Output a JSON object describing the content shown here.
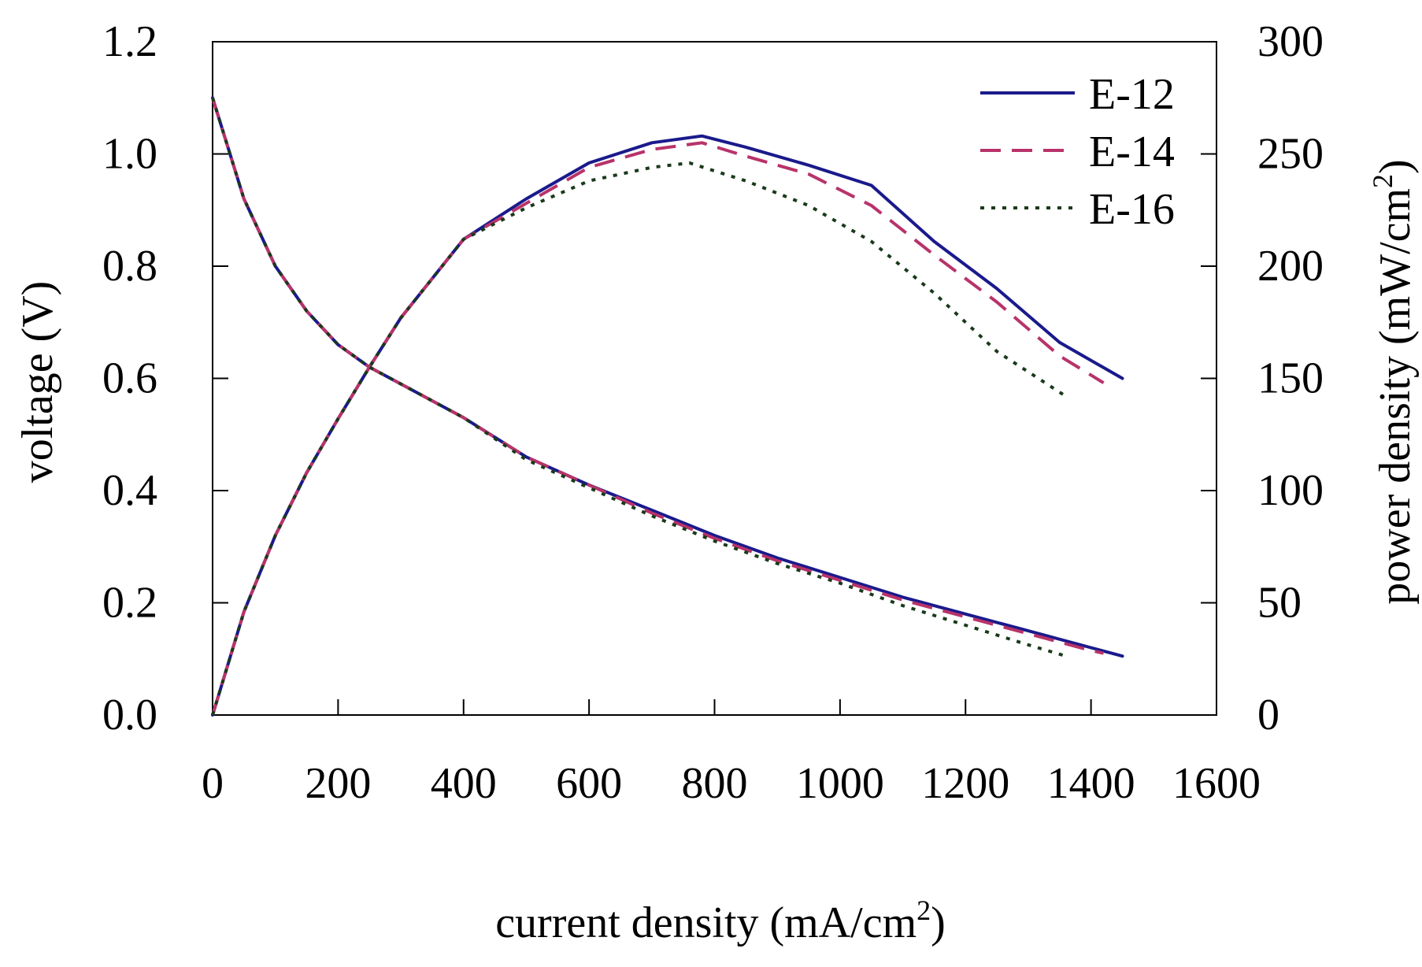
{
  "chart_data": {
    "type": "line",
    "title": "",
    "xlabel": {
      "text": "current density (mA/cm",
      "sup": "2",
      "tail": ")"
    },
    "ylabel": "voltage (V)",
    "y2label": {
      "text": "power density (mW/cm",
      "sup": "2",
      "tail": ")"
    },
    "xlim": [
      0,
      1600
    ],
    "ylim": [
      0,
      1.2
    ],
    "y2lim": [
      0,
      300
    ],
    "xticks": [
      0,
      200,
      400,
      600,
      800,
      1000,
      1200,
      1400,
      1600
    ],
    "yticks": [
      "0.0",
      "0.2",
      "0.4",
      "0.6",
      "0.8",
      "1.0",
      "1.2"
    ],
    "y2ticks": [
      "0",
      "50",
      "100",
      "150",
      "200",
      "250",
      "300"
    ],
    "grid": false,
    "legend_position": "top-right",
    "series": [
      {
        "name": "E-12",
        "color": "#1a1a8c",
        "dash": "solid",
        "voltage": [
          [
            0,
            1.1
          ],
          [
            50,
            0.92
          ],
          [
            100,
            0.8
          ],
          [
            150,
            0.72
          ],
          [
            200,
            0.66
          ],
          [
            250,
            0.62
          ],
          [
            300,
            0.59
          ],
          [
            400,
            0.53
          ],
          [
            500,
            0.46
          ],
          [
            600,
            0.41
          ],
          [
            700,
            0.365
          ],
          [
            800,
            0.32
          ],
          [
            900,
            0.28
          ],
          [
            1000,
            0.245
          ],
          [
            1100,
            0.21
          ],
          [
            1200,
            0.18
          ],
          [
            1300,
            0.15
          ],
          [
            1400,
            0.12
          ],
          [
            1450,
            0.105
          ]
        ],
        "power": [
          [
            0,
            0
          ],
          [
            50,
            46
          ],
          [
            100,
            80
          ],
          [
            150,
            108
          ],
          [
            200,
            132
          ],
          [
            250,
            155
          ],
          [
            300,
            177
          ],
          [
            400,
            212
          ],
          [
            500,
            230
          ],
          [
            600,
            246
          ],
          [
            700,
            255
          ],
          [
            780,
            258
          ],
          [
            850,
            253
          ],
          [
            950,
            245
          ],
          [
            1050,
            236
          ],
          [
            1150,
            211
          ],
          [
            1250,
            190
          ],
          [
            1350,
            166
          ],
          [
            1450,
            150
          ]
        ]
      },
      {
        "name": "E-14",
        "color": "#b8336a",
        "dash": "26,14",
        "voltage": [
          [
            0,
            1.1
          ],
          [
            50,
            0.92
          ],
          [
            100,
            0.8
          ],
          [
            150,
            0.72
          ],
          [
            200,
            0.66
          ],
          [
            250,
            0.62
          ],
          [
            300,
            0.59
          ],
          [
            400,
            0.53
          ],
          [
            500,
            0.46
          ],
          [
            600,
            0.41
          ],
          [
            700,
            0.36
          ],
          [
            800,
            0.315
          ],
          [
            900,
            0.275
          ],
          [
            1000,
            0.24
          ],
          [
            1100,
            0.205
          ],
          [
            1200,
            0.175
          ],
          [
            1300,
            0.145
          ],
          [
            1400,
            0.115
          ],
          [
            1420,
            0.11
          ]
        ],
        "power": [
          [
            0,
            0
          ],
          [
            50,
            46
          ],
          [
            100,
            80
          ],
          [
            150,
            108
          ],
          [
            200,
            132
          ],
          [
            250,
            155
          ],
          [
            300,
            177
          ],
          [
            400,
            212
          ],
          [
            500,
            228
          ],
          [
            600,
            244
          ],
          [
            700,
            252
          ],
          [
            780,
            255
          ],
          [
            850,
            249
          ],
          [
            950,
            241
          ],
          [
            1050,
            227
          ],
          [
            1150,
            205
          ],
          [
            1250,
            184
          ],
          [
            1350,
            160
          ],
          [
            1420,
            148
          ]
        ]
      },
      {
        "name": "E-16",
        "color": "#1a3a1a",
        "dash": "5,9",
        "voltage": [
          [
            0,
            1.1
          ],
          [
            50,
            0.92
          ],
          [
            100,
            0.8
          ],
          [
            150,
            0.72
          ],
          [
            200,
            0.66
          ],
          [
            250,
            0.62
          ],
          [
            300,
            0.59
          ],
          [
            400,
            0.53
          ],
          [
            500,
            0.455
          ],
          [
            600,
            0.405
          ],
          [
            700,
            0.355
          ],
          [
            800,
            0.31
          ],
          [
            900,
            0.27
          ],
          [
            1000,
            0.235
          ],
          [
            1100,
            0.195
          ],
          [
            1200,
            0.16
          ],
          [
            1300,
            0.125
          ],
          [
            1360,
            0.105
          ]
        ],
        "power": [
          [
            0,
            0
          ],
          [
            50,
            46
          ],
          [
            100,
            80
          ],
          [
            150,
            108
          ],
          [
            200,
            132
          ],
          [
            250,
            155
          ],
          [
            300,
            177
          ],
          [
            400,
            212
          ],
          [
            500,
            226
          ],
          [
            600,
            238
          ],
          [
            700,
            244
          ],
          [
            760,
            246
          ],
          [
            850,
            238
          ],
          [
            950,
            227
          ],
          [
            1050,
            211
          ],
          [
            1150,
            188
          ],
          [
            1250,
            162
          ],
          [
            1360,
            142
          ]
        ]
      }
    ]
  }
}
